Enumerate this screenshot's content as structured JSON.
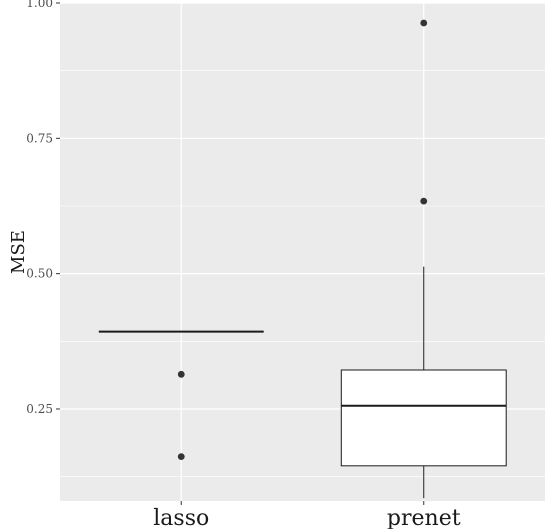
{
  "chart_data": {
    "type": "boxplot",
    "title": "",
    "xlabel": "",
    "ylabel": "MSE",
    "ylim": [
      0.08,
      1.0
    ],
    "y_ticks": [
      0.25,
      0.5,
      0.75,
      1.0
    ],
    "y_tick_labels": [
      "0.25",
      "0.50",
      "0.75",
      "1.00"
    ],
    "categories": [
      "lasso",
      "prenet"
    ],
    "grid": true,
    "legend": "none",
    "boxes": [
      {
        "category": "lasso",
        "q1": 0.393,
        "median": 0.393,
        "q3": 0.393,
        "whisker_low": 0.393,
        "whisker_high": 0.393,
        "outliers": [
          0.314,
          0.162
        ]
      },
      {
        "category": "prenet",
        "q1": 0.145,
        "median": 0.256,
        "q3": 0.322,
        "whisker_low": 0.085,
        "whisker_high": 0.513,
        "outliers": [
          0.963,
          0.634
        ]
      }
    ],
    "colors": {
      "panel": "#ebebeb",
      "grid": "#ffffff",
      "box_fill": "#ffffff",
      "line": "#1a1a1a",
      "point": "#333333"
    }
  }
}
